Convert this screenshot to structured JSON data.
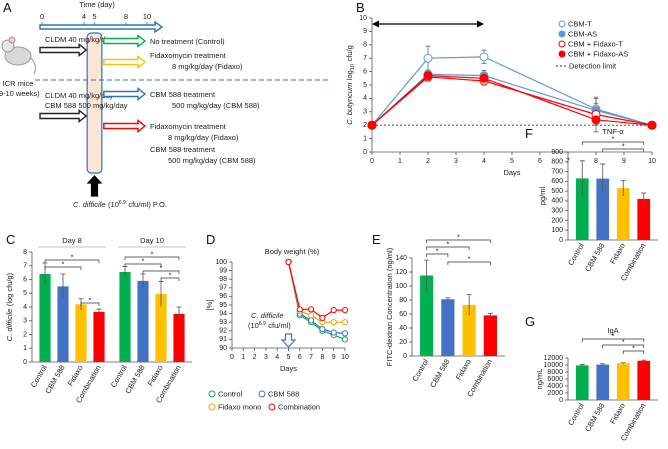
{
  "diagram": {
    "panel": "A",
    "time_label": "Time (day)",
    "ticks": [
      0,
      4,
      5,
      8,
      10
    ],
    "mice": [
      "ICR mice",
      "(9-10 weeks)"
    ],
    "pretreatment": [
      [
        "CLDM 40 mg/kg/day"
      ],
      [
        "CLDM 40 mg/kg/day",
        "CBM 588 500 mg/kg/day"
      ]
    ],
    "treatments": [
      {
        "color": "#00b050",
        "lines": [
          "No treatment (Control)"
        ]
      },
      {
        "color": "#ffc000",
        "lines": [
          "Fidaxomycin treatment",
          "8 mg/kg/day (Fidaxo)"
        ]
      },
      {
        "color": "#2e75b6",
        "lines": [
          "CBM 588 treatment",
          "500 mg/kg/day (CBM 588)"
        ]
      },
      {
        "color": "#ff0000",
        "lines": [
          "Fidaxomycin treatment",
          "8 mg/kg/day (Fidaxo)",
          "CBM 588 treatment",
          "500 mg/kg/day (CBM 588)"
        ]
      }
    ],
    "challenge": [
      "C. difficile",
      "(10",
      "6.9",
      "cfu/ml) P.O."
    ]
  },
  "chart_data": [
    {
      "panel": "B",
      "type": "line",
      "xlabel": "Days",
      "ylabel": [
        "C. butyricum",
        "log",
        "10",
        "cfu/g"
      ],
      "x": [
        0,
        2,
        4,
        8,
        10
      ],
      "xlim": [
        0,
        10
      ],
      "xticks": [
        0,
        1,
        2,
        3,
        4,
        5,
        6,
        7,
        8,
        9,
        10
      ],
      "ylim": [
        0,
        10
      ],
      "yticks": [
        0,
        1,
        2,
        3,
        4,
        5,
        6,
        7,
        8,
        9,
        10
      ],
      "period": [
        0,
        4
      ],
      "detection_limit": {
        "value": 2,
        "label": "Detection limit"
      },
      "series": [
        {
          "name": "CBM-T",
          "color": "#5b9bd5",
          "marker": "open",
          "values": [
            2,
            7,
            7.1,
            3.2,
            2
          ],
          "errors": [
            0,
            0.9,
            0.5,
            0.8,
            0
          ]
        },
        {
          "name": "CBM-AS",
          "color": "#5b9bd5",
          "marker": "filled",
          "values": [
            2,
            5.8,
            5.7,
            3.1,
            2
          ],
          "errors": [
            0,
            0.3,
            0.4,
            1,
            0
          ]
        },
        {
          "name": "CBM + Fidaxo-T",
          "color": "#ff0000",
          "marker": "open",
          "values": [
            2,
            5.6,
            5.3,
            2.8,
            2
          ],
          "errors": [
            0,
            0.3,
            0.3,
            0.8,
            0
          ]
        },
        {
          "name": "CBM + Fidaxo-AS",
          "color": "#ff0000",
          "marker": "filled",
          "values": [
            2,
            5.7,
            5.5,
            2.4,
            2
          ],
          "errors": [
            0,
            0.4,
            0.4,
            0.9,
            0
          ]
        }
      ]
    },
    {
      "panel": "C",
      "type": "grouped_bar",
      "ylabel": [
        "C. difficile",
        "(log cfu/g)"
      ],
      "categories": [
        "Control",
        "CBM 588",
        "Fidaxo",
        "Combination"
      ],
      "colors": [
        "#00b050",
        "#4472c4",
        "#ffc000",
        "#ff0000"
      ],
      "ylim": [
        0,
        8
      ],
      "yticks": [
        0,
        1,
        2,
        3,
        4,
        5,
        6,
        7,
        8
      ],
      "groups": [
        {
          "name": "Day 8",
          "values": [
            6.4,
            5.5,
            4.2,
            3.65
          ],
          "errors": [
            0.8,
            0.9,
            0.4,
            0.2
          ],
          "annotations": [
            "*",
            "*",
            "*"
          ]
        },
        {
          "name": "Day 10",
          "values": [
            6.55,
            5.9,
            4.95,
            3.5
          ],
          "errors": [
            0.4,
            0.5,
            0.9,
            0.5
          ],
          "annotations": [
            "*",
            "*",
            "*",
            "*"
          ]
        }
      ]
    },
    {
      "panel": "D",
      "type": "line",
      "title": "Body weight (%)",
      "ylabel": "[%]",
      "xlabel": "Days",
      "x": [
        5,
        6,
        7,
        8,
        9,
        10
      ],
      "xlim": [
        0,
        10
      ],
      "xticks": [
        0,
        1,
        2,
        3,
        4,
        5,
        6,
        7,
        8,
        9,
        10
      ],
      "ylim": [
        90,
        100
      ],
      "yticks": [
        90,
        91,
        92,
        93,
        94,
        95,
        96,
        97,
        98,
        99,
        100
      ],
      "annotation": [
        "C. difficile",
        "(10",
        "6.9",
        "cfu/ml)"
      ],
      "series": [
        {
          "name": "Control",
          "color": "#00b050",
          "marker": "open",
          "values": [
            100,
            93.8,
            93,
            92,
            91.5,
            91
          ]
        },
        {
          "name": "CBM 588",
          "color": "#4472c4",
          "marker": "open",
          "values": [
            100,
            94,
            93.2,
            92.2,
            91.8,
            91.7
          ]
        },
        {
          "name": "Fidaxo mono",
          "color": "#f4a300",
          "marker": "open",
          "values": [
            100,
            94.3,
            93.8,
            93,
            93,
            93
          ]
        },
        {
          "name": "Combination",
          "color": "#ff0000",
          "marker": "open",
          "values": [
            100,
            94.5,
            94.5,
            93.5,
            94.4,
            94.4
          ]
        }
      ]
    },
    {
      "panel": "E",
      "type": "bar",
      "ylabel": "FITC-dextran Concentration (ng/ml)",
      "categories": [
        "Control",
        "CBM 588",
        "Fidaxo",
        "Combination"
      ],
      "colors": [
        "#00b050",
        "#4472c4",
        "#ffc000",
        "#ff0000"
      ],
      "values": [
        115,
        81,
        73,
        58
      ],
      "errors": [
        22,
        2,
        15,
        3
      ],
      "ylim": [
        0,
        140
      ],
      "yticks": [
        0,
        20,
        40,
        60,
        80,
        100,
        120,
        140
      ],
      "annotations": [
        "*",
        "*",
        "*",
        "*"
      ]
    },
    {
      "panel": "F",
      "type": "bar",
      "title": "TNF-α",
      "ylabel": "pg/ml",
      "categories": [
        "Control",
        "CBM 588",
        "Fidaxo",
        "Combination"
      ],
      "colors": [
        "#00b050",
        "#4472c4",
        "#ffc000",
        "#ff0000"
      ],
      "values": [
        630,
        628,
        530,
        420
      ],
      "errors": [
        180,
        150,
        80,
        60
      ],
      "ylim": [
        0,
        900
      ],
      "yticks": [
        0,
        100,
        200,
        300,
        400,
        500,
        600,
        700,
        800,
        900
      ],
      "annotations": [
        "*",
        "*"
      ]
    },
    {
      "panel": "G",
      "type": "bar",
      "title": "IgA",
      "ylabel": "ng/mL",
      "categories": [
        "Control",
        "CBM 588",
        "Fidaxo",
        "Combination"
      ],
      "colors": [
        "#00b050",
        "#4472c4",
        "#ffc000",
        "#ff0000"
      ],
      "values": [
        9900,
        10100,
        10500,
        11200
      ],
      "errors": [
        300,
        250,
        150,
        200
      ],
      "ylim": [
        0,
        12000
      ],
      "yticks": [
        0,
        2000,
        4000,
        6000,
        8000,
        10000,
        12000
      ],
      "annotations": [
        "*",
        "*",
        "*"
      ]
    }
  ]
}
